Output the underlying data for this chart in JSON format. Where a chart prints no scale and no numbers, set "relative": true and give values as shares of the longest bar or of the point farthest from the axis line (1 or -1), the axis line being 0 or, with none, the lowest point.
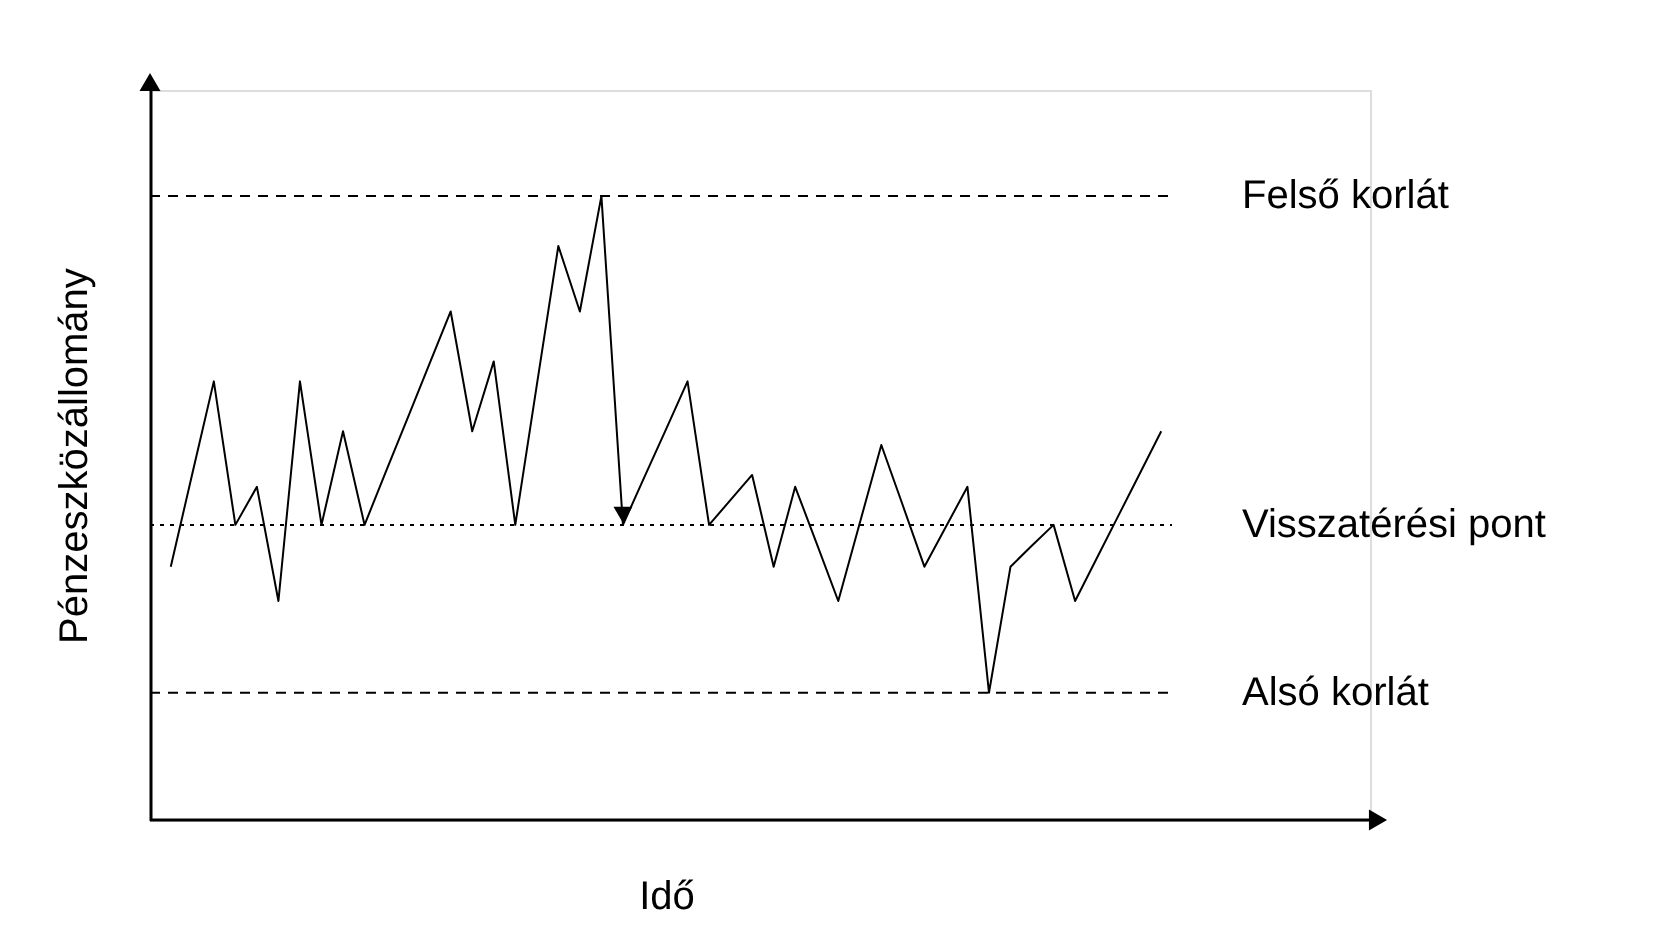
{
  "chart_data": {
    "type": "line",
    "relative": true,
    "xlabel": "Idő",
    "ylabel": "Pénzeszközállomány",
    "tick_labels": false,
    "grid": false,
    "marker": "none",
    "line_style": "solid",
    "categories": [
      null,
      null,
      null,
      null,
      null,
      null,
      null,
      null,
      null,
      null,
      null,
      null,
      null,
      null,
      null,
      null,
      null,
      null,
      null,
      null,
      null,
      null,
      null,
      null,
      null,
      null,
      null,
      null,
      null,
      null,
      null,
      null,
      null,
      null,
      null,
      null,
      null,
      null,
      null,
      null,
      null,
      null,
      null,
      null,
      null,
      null,
      null
    ],
    "series": [
      {
        "color": "#000000",
        "values": [
          0.406,
          0.555,
          0.703,
          0.473,
          0.534,
          0.351,
          0.703,
          0.473,
          0.623,
          0.473,
          0.559,
          0.644,
          0.73,
          0.815,
          0.623,
          0.735,
          0.473,
          0.697,
          0.92,
          0.815,
          1.0,
          0.473,
          0.55,
          0.626,
          0.703,
          0.473,
          0.513,
          0.553,
          0.406,
          0.534,
          0.443,
          0.351,
          0.476,
          0.601,
          0.504,
          0.406,
          0.47,
          0.534,
          0.204,
          0.406,
          0.44,
          0.473,
          0.351,
          0.419,
          0.487,
          0.555,
          0.623
        ]
      }
    ],
    "ref_lines": [
      {
        "axis": "y",
        "value": 1.0,
        "label": "Felső korlát",
        "line_style": "dashed",
        "color": "#000000"
      },
      {
        "axis": "y",
        "value": 0.473,
        "label": "Visszatérési pont",
        "line_style": "dotted",
        "color": "#000000"
      },
      {
        "axis": "y",
        "value": 0.204,
        "label": "Alsó korlát",
        "line_style": "dashed",
        "color": "#000000"
      }
    ]
  }
}
